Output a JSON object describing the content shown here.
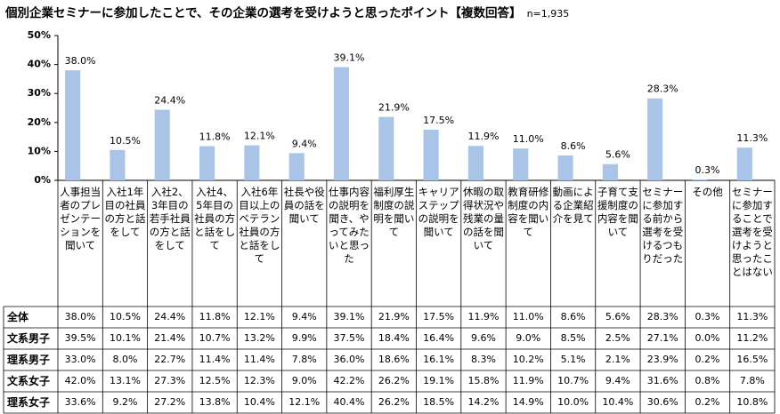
{
  "chart_data": {
    "type": "bar",
    "title": "個別企業セミナーに参加したことで、その企業の選考を受けようと思ったポイント【複数回答】",
    "subtitle": "n=1,935",
    "categories": [
      "人事担当者のプレゼンテーションを聞いて",
      "入社1年目の社員の方と話をして",
      "入社2、3年目の若手社員の方と話をして",
      "入社4、5年目の社員の方と話をして",
      "入社6年目以上のベテラン社員の方と話をして",
      "社長や役員の話を聞いて",
      "仕事内容の説明を聞き、やってみたいと思った",
      "福利厚生制度の説明を聞いて",
      "キャリアステップの説明を聞いて",
      "休暇の取得状況や残業の量の話を聞いて",
      "教育研修制度の内容を聞いて",
      "動画による企業紹介を見て",
      "子育て支援制度の内容を聞いて",
      "セミナーに参加する前から選考を受けるつもりだった",
      "その他",
      "セミナーに参加することで選考を受けようと思ったことはない"
    ],
    "values": [
      38.0,
      10.5,
      24.4,
      11.8,
      12.1,
      9.4,
      39.1,
      21.9,
      17.5,
      11.9,
      11.0,
      8.6,
      5.6,
      28.3,
      0.3,
      11.3
    ],
    "value_labels": [
      "38.0%",
      "10.5%",
      "24.4%",
      "11.8%",
      "12.1%",
      "9.4%",
      "39.1%",
      "21.9%",
      "17.5%",
      "11.9%",
      "11.0%",
      "8.6%",
      "5.6%",
      "28.3%",
      "0.3%",
      "11.3%"
    ],
    "color": "#a9c4e6",
    "ylim": [
      0,
      50
    ],
    "yticks": [
      {
        "value": 0,
        "label": "0%"
      },
      {
        "value": 10,
        "label": "10%"
      },
      {
        "value": 20,
        "label": "20%"
      },
      {
        "value": 30,
        "label": "30%"
      },
      {
        "value": 40,
        "label": "40%"
      },
      {
        "value": 50,
        "label": "50%"
      }
    ]
  },
  "table": {
    "total_label": "全体",
    "rows": [
      {
        "label": "文系男子",
        "cells": [
          "39.5%",
          "10.1%",
          "21.4%",
          "10.7%",
          "13.2%",
          "9.9%",
          "37.5%",
          "18.4%",
          "16.4%",
          "9.6%",
          "9.0%",
          "8.5%",
          "2.5%",
          "27.1%",
          "0.0%",
          "11.2%"
        ]
      },
      {
        "label": "理系男子",
        "cells": [
          "33.0%",
          "8.0%",
          "22.7%",
          "11.4%",
          "11.4%",
          "7.8%",
          "36.0%",
          "18.6%",
          "16.1%",
          "8.3%",
          "10.2%",
          "5.1%",
          "2.1%",
          "23.9%",
          "0.2%",
          "16.5%"
        ]
      },
      {
        "label": "文系女子",
        "cells": [
          "42.0%",
          "13.1%",
          "27.3%",
          "12.5%",
          "12.3%",
          "9.0%",
          "42.2%",
          "26.2%",
          "19.1%",
          "15.8%",
          "11.9%",
          "10.7%",
          "9.4%",
          "31.6%",
          "0.8%",
          "7.8%"
        ]
      },
      {
        "label": "理系女子",
        "cells": [
          "33.6%",
          "9.2%",
          "27.2%",
          "13.8%",
          "10.4%",
          "12.1%",
          "40.4%",
          "26.2%",
          "18.5%",
          "14.2%",
          "14.9%",
          "10.0%",
          "10.4%",
          "30.6%",
          "0.2%",
          "10.8%"
        ]
      }
    ]
  }
}
